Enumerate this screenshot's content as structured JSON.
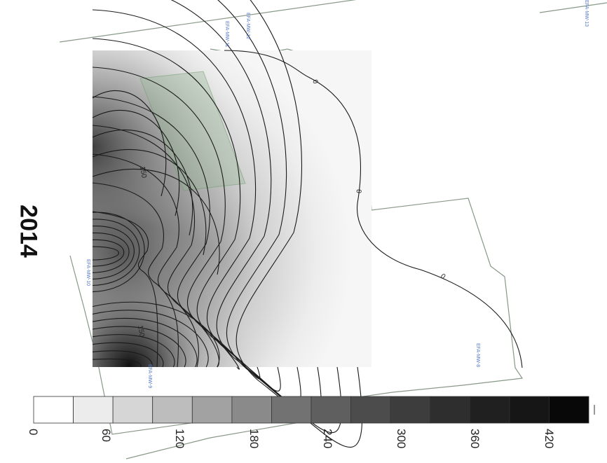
{
  "map": {
    "year_label": "2014",
    "contour_labels": [
      {
        "text": "0",
        "ref": "upper-right"
      },
      {
        "text": "0",
        "ref": "right"
      },
      {
        "text": "0",
        "ref": "lower-right"
      },
      {
        "text": "150",
        "ref": "upper-left"
      },
      {
        "text": "150",
        "ref": "lower-left"
      }
    ],
    "contour_interval": 30,
    "colors": {
      "line": "#1a1a1a",
      "parcel": "#889988",
      "building": "#6a9a6a",
      "well_label": "#5577cc"
    }
  },
  "legend": {
    "tick_labels": [
      "0",
      "60",
      "120",
      "180",
      "240",
      "300",
      "360",
      "420"
    ],
    "bin_colors": [
      "#ffffff",
      "#ececec",
      "#d6d6d6",
      "#bdbdbd",
      "#a2a2a2",
      "#8a8a8a",
      "#727272",
      "#5f5f5f",
      "#4c4c4c",
      "#3d3d3d",
      "#2e2e2e",
      "#202020",
      "#161616",
      "#080808"
    ]
  }
}
